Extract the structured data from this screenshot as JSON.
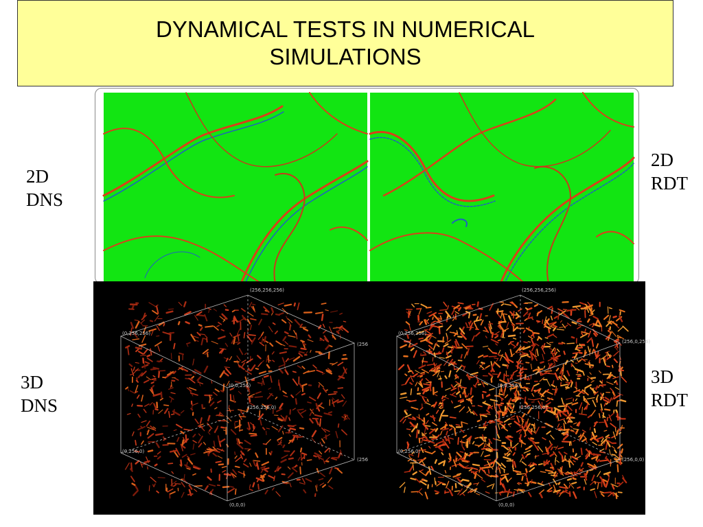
{
  "title": {
    "line1": "DYNAMICAL TESTS IN NUMERICAL",
    "line2": "SIMULATIONS"
  },
  "labels": {
    "dns2d": [
      "2D",
      "DNS"
    ],
    "rdt2d": [
      "2D",
      "RDT"
    ],
    "dns3d": [
      "3D",
      "DNS"
    ],
    "rdt3d": [
      "3D",
      "RDT"
    ]
  },
  "cube_left": {
    "top": "(256,256,256)",
    "upper_left": "(0,256,256)",
    "upper_right": "(256",
    "center": "(0,0,256)",
    "center_low": "(256,256,0)",
    "lower_left": "(0,256,0)",
    "lower_right": "(256",
    "bottom": "(0,0,0)"
  },
  "cube_right": {
    "top": "(256,256,256)",
    "upper_left": "(0,256,256)",
    "upper_right": "(256,0,256)",
    "center": "(0,0,256)",
    "center_low": "(256,256,0)",
    "lower_left": "(0,256,0)",
    "lower_right": "(256,0,0)",
    "bottom": "(0,0,0)"
  },
  "colors": {
    "title_bg": "#ffff99",
    "field_green": "#12e512",
    "filament": "#d9401a"
  }
}
